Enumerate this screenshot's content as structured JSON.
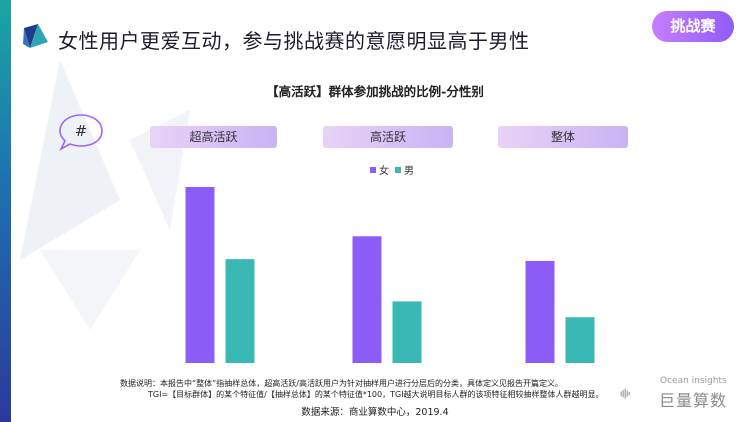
{
  "header": {
    "title": "女性用户更爱互动，参与挑战赛的意愿明显高于男性",
    "tag": "挑战赛",
    "hash_symbol": "#"
  },
  "colors": {
    "female": "#8b5cf6",
    "male": "#3ab8b4",
    "tag_start": "#c77dff",
    "tag_end": "#8f5cf7"
  },
  "chart_data": {
    "type": "bar",
    "title": "【高活跃】群体参加挑战的比例-分性别",
    "categories": [
      "超高活跃",
      "高活跃",
      "整体"
    ],
    "series": [
      {
        "name": "女",
        "values": [
          100,
          72,
          58
        ]
      },
      {
        "name": "男",
        "values": [
          59,
          35,
          26
        ]
      }
    ],
    "ylim": [
      0,
      100
    ],
    "legend": "top-center",
    "grid": false,
    "value_labels": false
  },
  "notes": {
    "line1": "数据说明：本报告中“整体”指抽样总体，超高活跃/高活跃用户为针对抽样用户进行分层后的分类，具体定义见报告开篇定义。",
    "line2": "TGI=【目标群体】的某个特征值/【抽样总体】的某个特征值*100，TGI越大说明目标人群的该项特征相较抽样整体人群越明显。",
    "source": "数据来源：商业算数中心，2019.4"
  },
  "brand": {
    "en": "Ocean insights",
    "cn": "巨量算数"
  }
}
